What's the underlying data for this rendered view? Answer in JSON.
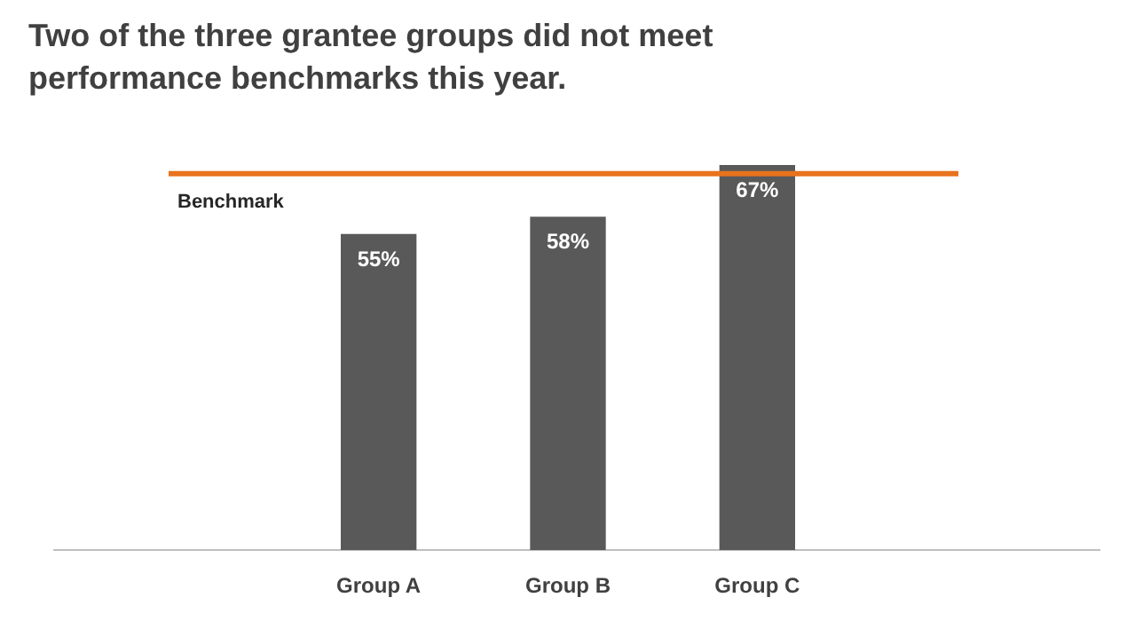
{
  "chart_data": {
    "type": "bar",
    "title": "Two of the three grantee groups did not meet performance benchmarks this year.",
    "categories": [
      "Group A",
      "Group B",
      "Group C"
    ],
    "values": [
      55,
      58,
      67
    ],
    "color": "#595959",
    "value_labels": [
      "55%",
      "58%",
      "67%"
    ],
    "ref_lines": [
      {
        "axis": "y",
        "value": 65.5,
        "label": "Benchmark",
        "color": "#e8731e"
      }
    ]
  }
}
